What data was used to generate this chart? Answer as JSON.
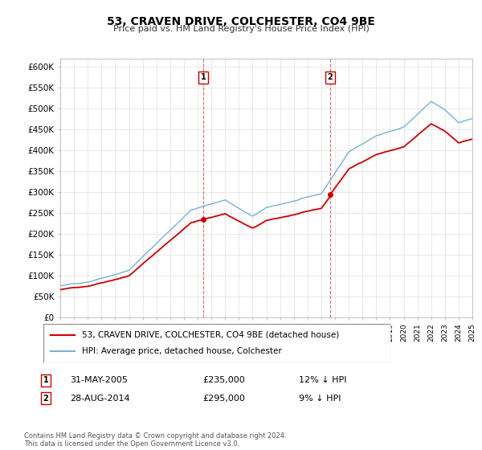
{
  "title": "53, CRAVEN DRIVE, COLCHESTER, CO4 9BE",
  "subtitle": "Price paid vs. HM Land Registry's House Price Index (HPI)",
  "ylim": [
    0,
    620000
  ],
  "yticks": [
    0,
    50000,
    100000,
    150000,
    200000,
    250000,
    300000,
    350000,
    400000,
    450000,
    500000,
    550000,
    600000
  ],
  "ytick_labels": [
    "£0",
    "£50K",
    "£100K",
    "£150K",
    "£200K",
    "£250K",
    "£300K",
    "£350K",
    "£400K",
    "£450K",
    "£500K",
    "£550K",
    "£600K"
  ],
  "sale1_date": 2005.42,
  "sale1_price": 235000,
  "sale2_date": 2014.65,
  "sale2_price": 295000,
  "property_color": "#cc0000",
  "hpi_color": "#7ab0d4",
  "legend_property": "53, CRAVEN DRIVE, COLCHESTER, CO4 9BE (detached house)",
  "legend_hpi": "HPI: Average price, detached house, Colchester",
  "footnote": "Contains HM Land Registry data © Crown copyright and database right 2024.\nThis data is licensed under the Open Government Licence v3.0.",
  "xmin": 1995,
  "xmax": 2025,
  "row1_date": "31-MAY-2005",
  "row1_price": "£235,000",
  "row1_hpi": "12% ↓ HPI",
  "row2_date": "28-AUG-2014",
  "row2_price": "£295,000",
  "row2_hpi": "9% ↓ HPI"
}
